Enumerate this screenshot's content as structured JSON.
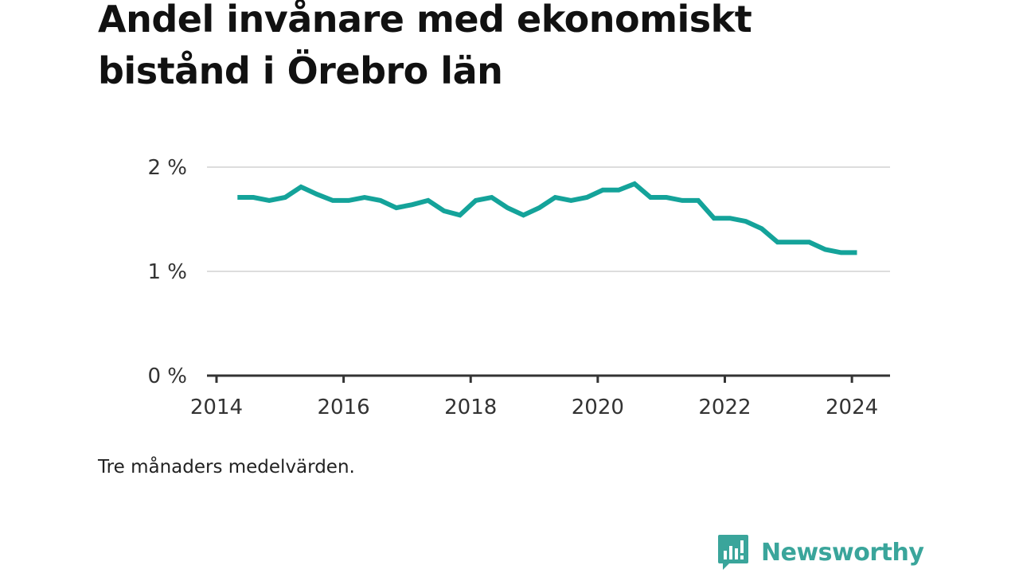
{
  "title": "Andel invånare med ekonomiskt bistånd i Örebro län",
  "note": "Tre månaders medelvärden.",
  "brand": {
    "name": "Newsworthy",
    "icon": "newsworthy-logo-icon",
    "color": "#3aa59b"
  },
  "colors": {
    "line": "#14a39a",
    "grid": "#dddddd",
    "axis": "#333333",
    "text": "#111111"
  },
  "chart_data": {
    "type": "line",
    "title": "Andel invånare med ekonomiskt bistånd i Örebro län",
    "xlabel": "",
    "ylabel": "",
    "grid": true,
    "xlim": [
      2013.85,
      2024.6
    ],
    "ylim": [
      0,
      2
    ],
    "xticks": [
      2014,
      2016,
      2018,
      2020,
      2022,
      2024
    ],
    "yticks": [
      {
        "value": 0,
        "label": "0 %"
      },
      {
        "value": 1,
        "label": "1 %"
      },
      {
        "value": 2,
        "label": "2 %"
      }
    ],
    "series": [
      {
        "values": [
          {
            "x": 2014.33,
            "y": 1.71
          },
          {
            "x": 2014.58,
            "y": 1.71
          },
          {
            "x": 2014.83,
            "y": 1.68
          },
          {
            "x": 2015.08,
            "y": 1.71
          },
          {
            "x": 2015.33,
            "y": 1.81
          },
          {
            "x": 2015.58,
            "y": 1.74
          },
          {
            "x": 2015.83,
            "y": 1.68
          },
          {
            "x": 2016.08,
            "y": 1.68
          },
          {
            "x": 2016.33,
            "y": 1.71
          },
          {
            "x": 2016.58,
            "y": 1.68
          },
          {
            "x": 2016.83,
            "y": 1.61
          },
          {
            "x": 2017.08,
            "y": 1.64
          },
          {
            "x": 2017.33,
            "y": 1.68
          },
          {
            "x": 2017.58,
            "y": 1.58
          },
          {
            "x": 2017.83,
            "y": 1.54
          },
          {
            "x": 2018.08,
            "y": 1.68
          },
          {
            "x": 2018.33,
            "y": 1.71
          },
          {
            "x": 2018.58,
            "y": 1.61
          },
          {
            "x": 2018.83,
            "y": 1.54
          },
          {
            "x": 2019.08,
            "y": 1.61
          },
          {
            "x": 2019.33,
            "y": 1.71
          },
          {
            "x": 2019.58,
            "y": 1.68
          },
          {
            "x": 2019.83,
            "y": 1.71
          },
          {
            "x": 2020.08,
            "y": 1.78
          },
          {
            "x": 2020.33,
            "y": 1.78
          },
          {
            "x": 2020.58,
            "y": 1.84
          },
          {
            "x": 2020.83,
            "y": 1.71
          },
          {
            "x": 2021.08,
            "y": 1.71
          },
          {
            "x": 2021.33,
            "y": 1.68
          },
          {
            "x": 2021.58,
            "y": 1.68
          },
          {
            "x": 2021.83,
            "y": 1.51
          },
          {
            "x": 2022.08,
            "y": 1.51
          },
          {
            "x": 2022.33,
            "y": 1.48
          },
          {
            "x": 2022.58,
            "y": 1.41
          },
          {
            "x": 2022.83,
            "y": 1.28
          },
          {
            "x": 2023.08,
            "y": 1.28
          },
          {
            "x": 2023.33,
            "y": 1.28
          },
          {
            "x": 2023.58,
            "y": 1.21
          },
          {
            "x": 2023.83,
            "y": 1.18
          },
          {
            "x": 2024.08,
            "y": 1.18
          }
        ]
      }
    ]
  }
}
